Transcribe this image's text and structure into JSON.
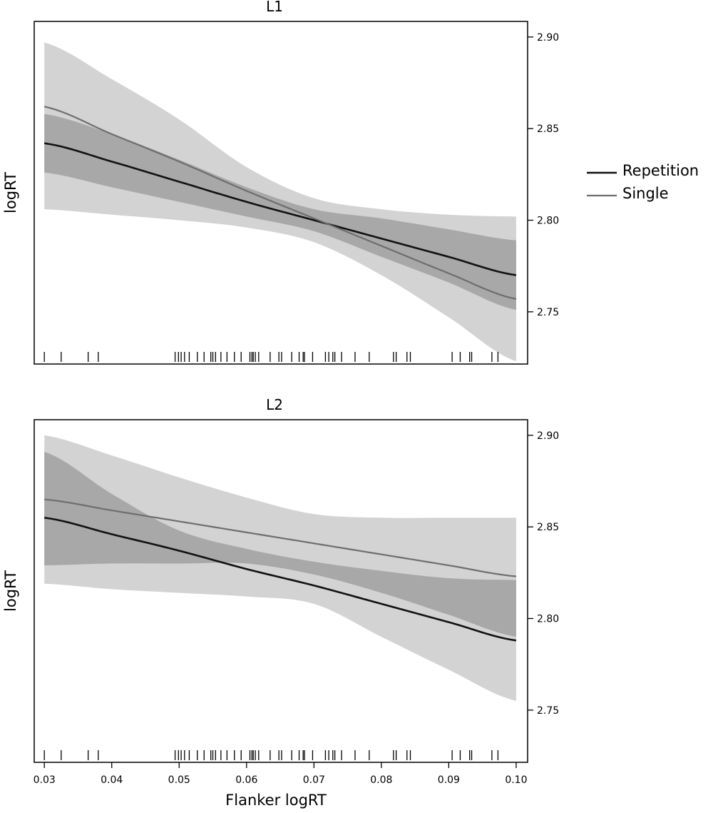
{
  "chart_data": {
    "type": "line",
    "xlabel": "Flanker logRT",
    "ylabel": "logRT",
    "xlim": [
      0.0285,
      0.1017
    ],
    "ylim": [
      2.7215,
      2.9085
    ],
    "x_ticks": [
      "0.03",
      "0.04",
      "0.05",
      "0.06",
      "0.07",
      "0.08",
      "0.09",
      "0.10"
    ],
    "y_ticks": [
      "2.75",
      "2.80",
      "2.85",
      "2.90"
    ],
    "y_axis_side": "right",
    "legend": {
      "placement": "right",
      "entries": [
        {
          "name": "Repetition",
          "color": "#111111"
        },
        {
          "name": "Single",
          "color": "#6e6e6e"
        }
      ]
    },
    "colors": {
      "band_wide": "#d3d3d3",
      "band_narrow": "#a8a8a8",
      "repetition": "#111111",
      "single": "#6e6e6e"
    },
    "rug_x": [
      0.03,
      0.0325,
      0.0365,
      0.038,
      0.0494,
      0.0499,
      0.0503,
      0.0508,
      0.0515,
      0.0527,
      0.0537,
      0.0547,
      0.055,
      0.0554,
      0.0562,
      0.0571,
      0.0582,
      0.0592,
      0.0605,
      0.0608,
      0.061,
      0.0613,
      0.0618,
      0.0635,
      0.0648,
      0.0652,
      0.0667,
      0.0678,
      0.0684,
      0.0686,
      0.0698,
      0.0717,
      0.0722,
      0.0728,
      0.0731,
      0.0741,
      0.0761,
      0.0782,
      0.0818,
      0.0822,
      0.0838,
      0.0843,
      0.0905,
      0.0917,
      0.0931,
      0.0934,
      0.0964,
      0.0973
    ],
    "panels": [
      {
        "title": "L1",
        "x": [
          0.03,
          0.04,
          0.05,
          0.06,
          0.07,
          0.08,
          0.09,
          0.1
        ],
        "series": [
          {
            "name": "Repetition",
            "values": [
              2.842,
              2.832,
              2.821,
              2.81,
              2.8,
              2.79,
              2.78,
              2.77
            ],
            "ci_lower": [
              2.826,
              2.818,
              2.81,
              2.802,
              2.794,
              2.78,
              2.766,
              2.751
            ],
            "ci_upper": [
              2.858,
              2.847,
              2.833,
              2.818,
              2.806,
              2.801,
              2.795,
              2.789
            ]
          },
          {
            "name": "Single",
            "values": [
              2.862,
              2.847,
              2.832,
              2.816,
              2.801,
              2.786,
              2.771,
              2.757
            ],
            "ci_lower": [
              2.806,
              2.803,
              2.8,
              2.796,
              2.788,
              2.77,
              2.747,
              2.723
            ],
            "ci_upper": [
              2.897,
              2.877,
              2.855,
              2.829,
              2.812,
              2.806,
              2.803,
              2.802
            ]
          }
        ]
      },
      {
        "title": "L2",
        "x": [
          0.03,
          0.04,
          0.05,
          0.06,
          0.07,
          0.08,
          0.09,
          0.1
        ],
        "series": [
          {
            "name": "Repetition",
            "values": [
              2.855,
              2.846,
              2.837,
              2.827,
              2.818,
              2.808,
              2.798,
              2.788
            ],
            "ci_lower": [
              2.819,
              2.816,
              2.814,
              2.812,
              2.808,
              2.79,
              2.772,
              2.755
            ],
            "ci_upper": [
              2.891,
              2.868,
              2.848,
              2.838,
              2.831,
              2.826,
              2.822,
              2.821
            ]
          },
          {
            "name": "Single",
            "values": [
              2.865,
              2.859,
              2.853,
              2.847,
              2.841,
              2.835,
              2.829,
              2.823
            ],
            "ci_lower": [
              2.829,
              2.83,
              2.83,
              2.83,
              2.824,
              2.814,
              2.802,
              2.79
            ],
            "ci_upper": [
              2.9,
              2.889,
              2.877,
              2.866,
              2.857,
              2.855,
              2.855,
              2.855
            ]
          }
        ]
      }
    ]
  }
}
